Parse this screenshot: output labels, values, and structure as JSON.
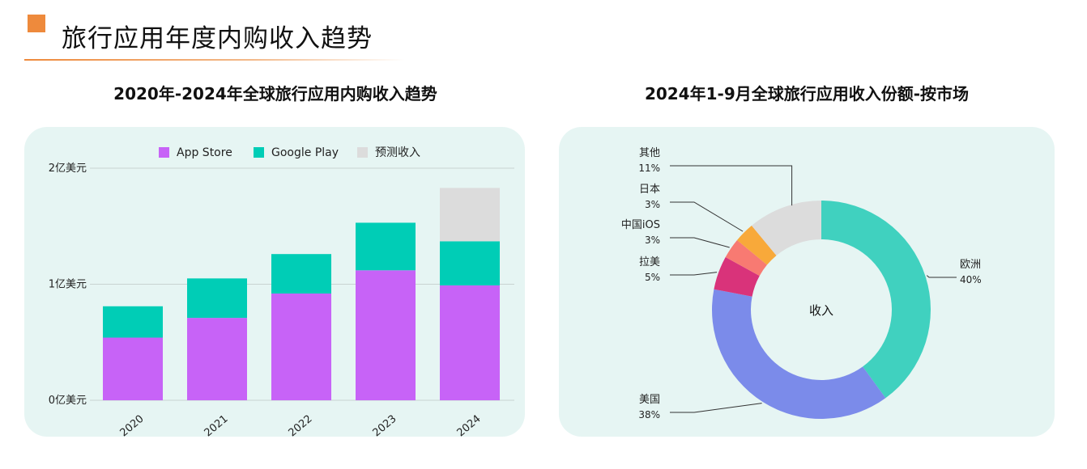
{
  "page": {
    "title": "旅行应用年度内购收入趋势",
    "accent_color": "#ee8a3c",
    "panel_color": "#e6f5f3"
  },
  "chart_data": [
    {
      "type": "bar",
      "title": "2020年-2024年全球旅行应用内购收入趋势",
      "stacked": true,
      "categories": [
        "2020",
        "2021",
        "2022",
        "2023",
        "2024"
      ],
      "series": [
        {
          "name": "App Store",
          "color": "#c763f7",
          "values": [
            0.54,
            0.71,
            0.92,
            1.12,
            0.99
          ]
        },
        {
          "name": "Google Play",
          "color": "#00cdb6",
          "values": [
            0.27,
            0.34,
            0.34,
            0.41,
            0.38
          ]
        },
        {
          "name": "预测收入",
          "color": "#dcdcdc",
          "values": [
            0,
            0,
            0,
            0,
            0.46
          ]
        }
      ],
      "y_ticks": [
        {
          "value": 0,
          "label": "0亿美元"
        },
        {
          "value": 1,
          "label": "1亿美元"
        },
        {
          "value": 2,
          "label": "2亿美元"
        }
      ],
      "ylim": [
        0,
        2
      ],
      "legend_position": "top-center",
      "grid": true
    },
    {
      "type": "pie",
      "title": "2024年1-9月全球旅行应用收入份额-按市场",
      "donut": true,
      "center_label": "收入",
      "slices": [
        {
          "name": "欧洲",
          "percent_label": "40%",
          "value": 40,
          "color": "#40d1bf"
        },
        {
          "name": "美国",
          "percent_label": "38%",
          "value": 38,
          "color": "#7b8bea"
        },
        {
          "name": "拉美",
          "percent_label": "5%",
          "value": 5,
          "color": "#d9337a"
        },
        {
          "name": "中国iOS",
          "percent_label": "3%",
          "value": 3,
          "color": "#f87a72"
        },
        {
          "name": "日本",
          "percent_label": "3%",
          "value": 3,
          "color": "#f8a93a"
        },
        {
          "name": "其他",
          "percent_label": "11%",
          "value": 11,
          "color": "#dcdcdc"
        }
      ]
    }
  ]
}
